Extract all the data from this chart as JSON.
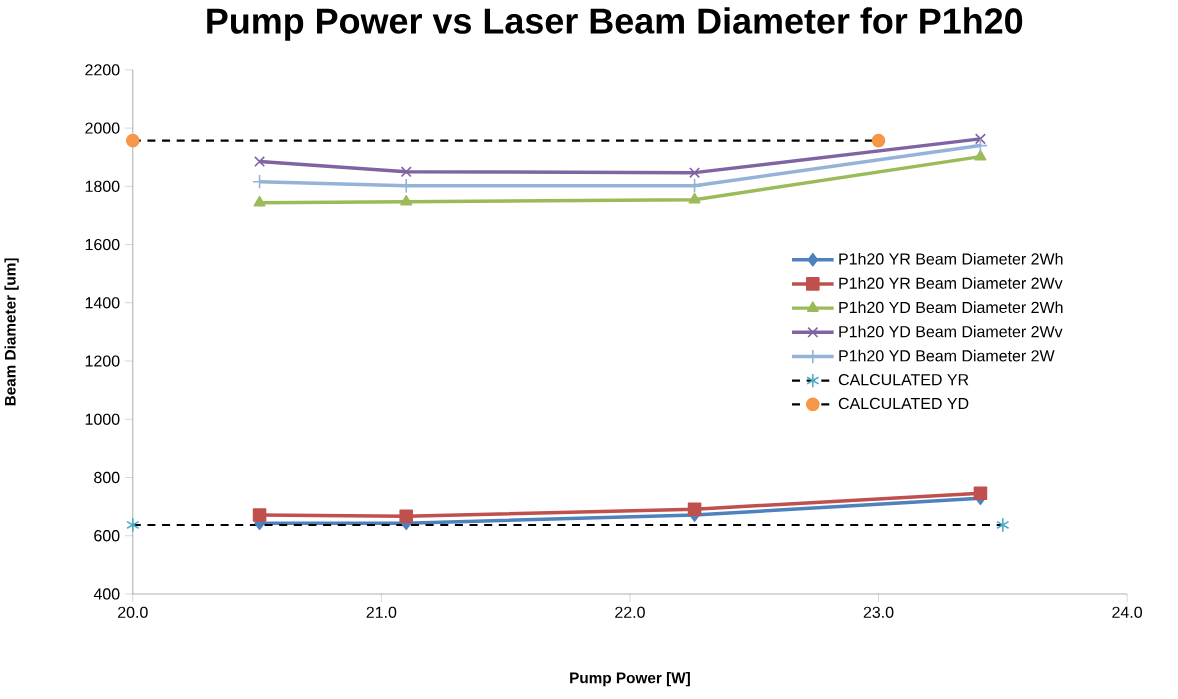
{
  "chart_data": {
    "type": "line",
    "title": "Pump Power vs Laser Beam Diameter for P1h20",
    "xlabel": "Pump Power [W]",
    "ylabel": "Beam Diameter [um]",
    "xlim": [
      20,
      24
    ],
    "xticks": [
      {
        "value": 20,
        "label": "20.0"
      },
      {
        "value": 21,
        "label": "21.0"
      },
      {
        "value": 22,
        "label": "22.0"
      },
      {
        "value": 23,
        "label": "23.0"
      },
      {
        "value": 24,
        "label": "24.0"
      }
    ],
    "ylim": [
      400,
      2200
    ],
    "yticks": [
      400,
      600,
      800,
      1000,
      1200,
      1400,
      1600,
      1800,
      2000,
      2200
    ],
    "grid": false,
    "legend": "right",
    "series": [
      {
        "name": "P1h20 YR Beam Diameter  2Wh",
        "color": "#4f81bd",
        "marker": "diamond",
        "line_style": "solid",
        "x": [
          20.51,
          21.1,
          22.26,
          23.41
        ],
        "values": [
          643,
          643,
          671,
          729
        ]
      },
      {
        "name": "P1h20 YR Beam Diameter  2Wv",
        "color": "#c0504d",
        "marker": "square",
        "line_style": "solid",
        "x": [
          20.51,
          21.1,
          22.26,
          23.41
        ],
        "values": [
          671,
          667,
          691,
          746
        ]
      },
      {
        "name": "P1h20 YD Beam Diameter  2Wh",
        "color": "#9bbb59",
        "marker": "triangle",
        "line_style": "solid",
        "x": [
          20.51,
          21.1,
          22.26,
          23.41
        ],
        "values": [
          1744,
          1747,
          1754,
          1902
        ]
      },
      {
        "name": "P1h20 YD Beam Diameter  2Wv",
        "color": "#8064a2",
        "marker": "cross",
        "line_style": "solid",
        "x": [
          20.51,
          21.1,
          22.26,
          23.41
        ],
        "values": [
          1885,
          1850,
          1847,
          1963
        ]
      },
      {
        "name": "P1h20 YD Beam Diameter  2W",
        "color": "#95b3d7",
        "marker": "plus",
        "line_style": "solid",
        "x": [
          20.51,
          21.1,
          22.26,
          23.41
        ],
        "values": [
          1816,
          1802,
          1802,
          1940
        ]
      },
      {
        "name": "CALCULATED YR",
        "color": "#4bacc6",
        "marker": "cross",
        "line_style": "dashed",
        "x": [
          20,
          23.5
        ],
        "values": [
          637,
          637
        ]
      },
      {
        "name": "CALCULATED YD",
        "color": "#f79646",
        "marker": "circle",
        "line_style": "dashed",
        "x": [
          20,
          23
        ],
        "values": [
          1957,
          1957
        ]
      }
    ]
  }
}
